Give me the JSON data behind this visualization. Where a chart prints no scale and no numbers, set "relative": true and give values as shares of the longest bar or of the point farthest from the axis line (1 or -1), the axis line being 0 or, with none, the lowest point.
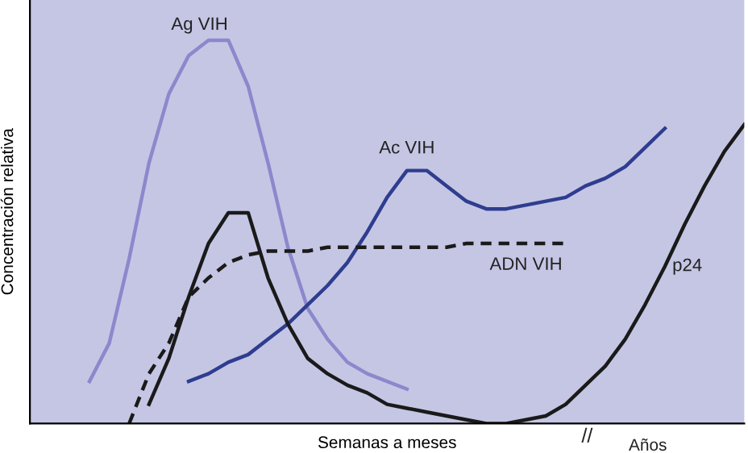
{
  "chart_data": {
    "type": "line",
    "relative": true,
    "xlabel": "Semanas a meses",
    "ylabel": "Concentración relativa",
    "annotations": [
      "//",
      "Años"
    ],
    "categories": [
      null,
      null,
      null,
      null,
      null,
      null,
      null,
      null,
      null,
      null,
      null,
      null,
      null,
      null,
      null,
      null,
      null,
      null,
      null,
      null,
      null,
      null,
      null,
      null,
      null,
      null,
      null,
      null,
      null,
      null,
      null,
      null,
      null,
      null,
      null,
      null,
      null
    ],
    "series": [
      {
        "name": "Ag VIH",
        "color": "#8c88cc",
        "line_style": "solid",
        "values": [
          null,
          null,
          null,
          0.11,
          0.21,
          0.43,
          0.68,
          0.86,
          0.96,
          1.0,
          1.0,
          0.88,
          0.68,
          0.46,
          0.3,
          0.22,
          0.16,
          0.13,
          0.11,
          0.09,
          null,
          null,
          null,
          null,
          null,
          null,
          null,
          null,
          null,
          null,
          null,
          null,
          null,
          null,
          null,
          null,
          null
        ]
      },
      {
        "name": "Ac VIH",
        "color": "#2e3d8f",
        "line_style": "solid",
        "values": [
          null,
          null,
          null,
          null,
          null,
          null,
          null,
          null,
          0.11,
          0.13,
          0.16,
          0.18,
          0.22,
          0.26,
          0.31,
          0.36,
          0.42,
          0.5,
          0.59,
          0.66,
          0.66,
          0.62,
          0.58,
          0.56,
          0.56,
          0.57,
          0.58,
          0.59,
          0.62,
          0.64,
          0.67,
          0.72,
          0.77,
          null,
          null,
          null,
          null
        ]
      },
      {
        "name": "ADN VIH",
        "color": "#1a1a1a",
        "line_style": "dashed",
        "values": [
          null,
          null,
          null,
          null,
          null,
          0,
          0.13,
          0.21,
          0.33,
          0.38,
          0.42,
          0.44,
          0.45,
          0.45,
          0.45,
          0.46,
          0.46,
          0.46,
          0.46,
          0.46,
          0.46,
          0.46,
          0.47,
          0.47,
          0.47,
          0.47,
          0.47,
          0.47,
          null,
          null,
          null,
          null,
          null,
          null,
          null,
          null,
          null
        ]
      },
      {
        "name": "p24",
        "color": "#1a1a1a",
        "line_style": "solid",
        "values": [
          null,
          null,
          null,
          null,
          null,
          null,
          0.05,
          0.17,
          0.33,
          0.47,
          0.55,
          0.55,
          0.38,
          0.26,
          0.17,
          0.13,
          0.1,
          0.08,
          0.05,
          0.04,
          0.03,
          0.02,
          0.01,
          0,
          0,
          0.01,
          0.02,
          0.05,
          0.1,
          0.15,
          0.22,
          0.31,
          0.41,
          0.52,
          0.62,
          0.71,
          0.78
        ]
      }
    ]
  }
}
